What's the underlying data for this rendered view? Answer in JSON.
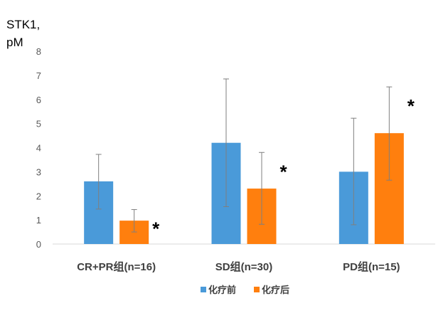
{
  "chart_data": {
    "type": "bar",
    "title": "",
    "ylabel_lines": [
      "STK1,",
      "pM"
    ],
    "xlabel": "",
    "ylim": [
      0,
      8
    ],
    "yticks": [
      0,
      1,
      2,
      3,
      4,
      5,
      6,
      7,
      8
    ],
    "grid": false,
    "legend_position": "bottom",
    "categories": [
      "CR+PR组(n=16)",
      "SD组(n=30)",
      "PD组(n=15)"
    ],
    "series": [
      {
        "name": "化疗前",
        "color": "#4A9AD9",
        "values": [
          2.6,
          4.2,
          3.0
        ],
        "error_low": [
          1.45,
          1.55,
          0.8
        ],
        "error_high": [
          3.72,
          6.85,
          5.22
        ],
        "significance": [
          "",
          "",
          ""
        ]
      },
      {
        "name": "化疗后",
        "color": "#FF7F0E",
        "values": [
          0.97,
          2.3,
          4.6
        ],
        "error_low": [
          0.5,
          0.82,
          2.65
        ],
        "error_high": [
          1.43,
          3.8,
          6.52
        ],
        "significance": [
          "*",
          "*",
          "*"
        ]
      }
    ]
  }
}
